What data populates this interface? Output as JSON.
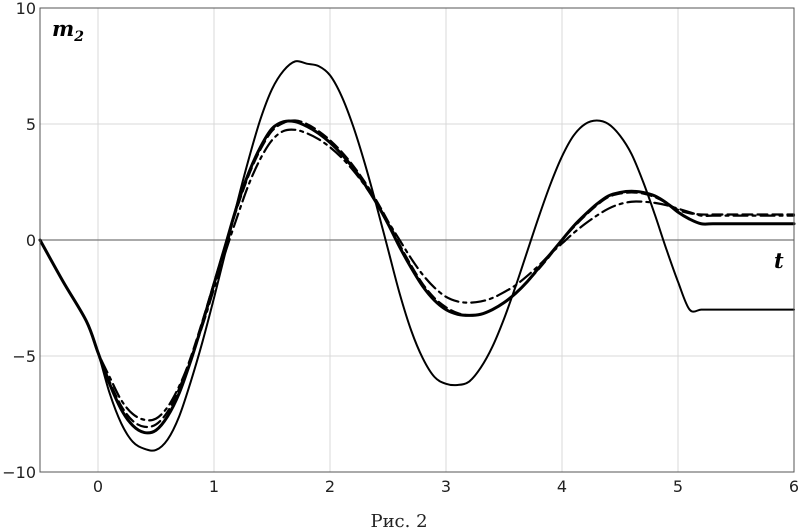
{
  "chart_data": {
    "type": "line",
    "title": "",
    "caption": "Рис. 2",
    "xlabel": "t",
    "ylabel": "m",
    "ylabel_subscript": "2",
    "xlim": [
      -0.5,
      6
    ],
    "ylim": [
      -10,
      10
    ],
    "xticks": [
      0,
      1,
      2,
      3,
      4,
      5,
      6
    ],
    "xtick_labels": [
      "0",
      "1",
      "2",
      "3",
      "4",
      "5",
      "6"
    ],
    "yticks": [
      -10,
      -5,
      0,
      5,
      10
    ],
    "ytick_labels": [
      "−10",
      "−5",
      "0",
      "5",
      "10"
    ],
    "grid": true,
    "legend": "none",
    "series": [
      {
        "style": "solid-thin",
        "x": [
          -0.5,
          -0.3,
          -0.1,
          0,
          0.1,
          0.2,
          0.3,
          0.4,
          0.5,
          0.6,
          0.7,
          0.8,
          0.9,
          1.0,
          1.1,
          1.2,
          1.3,
          1.4,
          1.5,
          1.6,
          1.7,
          1.8,
          1.9,
          2.0,
          2.1,
          2.2,
          2.3,
          2.4,
          2.5,
          2.6,
          2.7,
          2.8,
          2.9,
          3.0,
          3.1,
          3.2,
          3.3,
          3.4,
          3.5,
          3.6,
          3.7,
          3.8,
          3.9,
          4.0,
          4.1,
          4.2,
          4.3,
          4.4,
          4.5,
          4.6,
          4.7,
          4.8,
          4.9,
          5.0,
          5.1,
          5.2,
          5.3,
          5.4,
          5.5,
          5.6,
          5.7,
          5.8,
          5.9,
          6.0
        ],
        "y": [
          0,
          -1.8,
          -3.5,
          -4.85,
          -6.6,
          -7.9,
          -8.7,
          -9.0,
          -9.05,
          -8.6,
          -7.6,
          -6.1,
          -4.4,
          -2.5,
          -0.5,
          1.6,
          3.5,
          5.2,
          6.5,
          7.3,
          7.7,
          7.6,
          7.5,
          7.1,
          6.2,
          4.9,
          3.3,
          1.5,
          -0.4,
          -2.3,
          -3.9,
          -5.1,
          -5.9,
          -6.2,
          -6.25,
          -6.1,
          -5.5,
          -4.6,
          -3.4,
          -2.0,
          -0.5,
          1.0,
          2.4,
          3.6,
          4.5,
          5.0,
          5.15,
          5.0,
          4.5,
          3.7,
          2.5,
          1.1,
          -0.4,
          -1.8,
          -3.0,
          -3.0,
          -3.0,
          -3.0,
          -3.0,
          -3.0,
          -3.0,
          -3.0,
          -3.0,
          -3.0
        ]
      },
      {
        "style": "solid-thick",
        "x": [
          -0.5,
          -0.3,
          -0.1,
          0,
          0.1,
          0.2,
          0.3,
          0.4,
          0.5,
          0.6,
          0.7,
          0.8,
          0.9,
          1.0,
          1.1,
          1.2,
          1.3,
          1.4,
          1.5,
          1.6,
          1.7,
          1.8,
          1.9,
          2.0,
          2.1,
          2.2,
          2.3,
          2.4,
          2.5,
          2.6,
          2.7,
          2.8,
          2.9,
          3.0,
          3.1,
          3.2,
          3.3,
          3.4,
          3.5,
          3.6,
          3.7,
          3.8,
          3.9,
          4.0,
          4.1,
          4.2,
          4.3,
          4.4,
          4.5,
          4.6,
          4.7,
          4.8,
          4.9,
          5.0,
          5.1,
          5.2,
          5.3,
          5.4,
          5.5,
          5.6,
          5.7,
          5.8,
          5.9,
          6.0
        ],
        "y": [
          0,
          -1.8,
          -3.5,
          -4.85,
          -6.2,
          -7.3,
          -8.0,
          -8.3,
          -8.2,
          -7.6,
          -6.6,
          -5.2,
          -3.6,
          -1.9,
          -0.2,
          1.5,
          2.9,
          4.0,
          4.8,
          5.1,
          5.1,
          4.9,
          4.6,
          4.2,
          3.7,
          3.1,
          2.4,
          1.6,
          0.7,
          -0.3,
          -1.2,
          -2.0,
          -2.6,
          -3.0,
          -3.2,
          -3.25,
          -3.2,
          -3.0,
          -2.7,
          -2.3,
          -1.8,
          -1.2,
          -0.6,
          0.0,
          0.6,
          1.1,
          1.55,
          1.9,
          2.05,
          2.1,
          2.05,
          1.9,
          1.6,
          1.2,
          0.9,
          0.7,
          0.7,
          0.7,
          0.7,
          0.7,
          0.7,
          0.7,
          0.7,
          0.7
        ]
      },
      {
        "style": "dashed",
        "x": [
          -0.5,
          -0.3,
          -0.1,
          0,
          0.1,
          0.2,
          0.3,
          0.4,
          0.5,
          0.6,
          0.7,
          0.8,
          0.9,
          1.0,
          1.1,
          1.2,
          1.3,
          1.4,
          1.5,
          1.6,
          1.7,
          1.8,
          1.9,
          2.0,
          2.1,
          2.2,
          2.3,
          2.4,
          2.5,
          2.6,
          2.7,
          2.8,
          2.9,
          3.0,
          3.1,
          3.2,
          3.3,
          3.4,
          3.5,
          3.6,
          3.7,
          3.8,
          3.9,
          4.0,
          4.1,
          4.2,
          4.3,
          4.4,
          4.5,
          4.6,
          4.7,
          4.8,
          4.9,
          5.0,
          5.1,
          5.2,
          5.3,
          5.4,
          5.5,
          5.6,
          5.7,
          5.8,
          5.9,
          6.0
        ],
        "y": [
          0,
          -1.8,
          -3.5,
          -4.85,
          -6.1,
          -7.15,
          -7.8,
          -8.05,
          -7.95,
          -7.4,
          -6.4,
          -5.05,
          -3.5,
          -1.85,
          -0.2,
          1.4,
          2.8,
          3.9,
          4.7,
          5.05,
          5.15,
          5.0,
          4.7,
          4.3,
          3.8,
          3.2,
          2.5,
          1.7,
          0.8,
          -0.2,
          -1.1,
          -1.9,
          -2.5,
          -2.9,
          -3.15,
          -3.25,
          -3.2,
          -3.0,
          -2.7,
          -2.3,
          -1.8,
          -1.25,
          -0.65,
          0.0,
          0.55,
          1.05,
          1.5,
          1.85,
          2.0,
          2.05,
          2.0,
          1.85,
          1.6,
          1.3,
          1.15,
          1.1,
          1.1,
          1.1,
          1.1,
          1.1,
          1.1,
          1.1,
          1.1,
          1.1
        ]
      },
      {
        "style": "dash-dot",
        "x": [
          -0.5,
          -0.3,
          -0.1,
          0,
          0.1,
          0.2,
          0.3,
          0.4,
          0.5,
          0.6,
          0.7,
          0.8,
          0.9,
          1.0,
          1.1,
          1.2,
          1.3,
          1.4,
          1.5,
          1.6,
          1.7,
          1.8,
          1.9,
          2.0,
          2.1,
          2.2,
          2.3,
          2.4,
          2.5,
          2.6,
          2.7,
          2.8,
          2.9,
          3.0,
          3.1,
          3.2,
          3.3,
          3.4,
          3.5,
          3.6,
          3.7,
          3.8,
          3.9,
          4.0,
          4.1,
          4.2,
          4.3,
          4.4,
          4.5,
          4.6,
          4.7,
          4.8,
          4.9,
          5.0,
          5.1,
          5.2,
          5.3,
          5.4,
          5.5,
          5.6,
          5.7,
          5.8,
          5.9,
          6.0
        ],
        "y": [
          0,
          -1.8,
          -3.5,
          -4.85,
          -5.9,
          -6.9,
          -7.5,
          -7.75,
          -7.7,
          -7.2,
          -6.3,
          -5.1,
          -3.7,
          -2.1,
          -0.5,
          1.0,
          2.4,
          3.5,
          4.3,
          4.7,
          4.75,
          4.6,
          4.35,
          4.0,
          3.55,
          3.0,
          2.35,
          1.6,
          0.8,
          0.0,
          -0.8,
          -1.5,
          -2.05,
          -2.45,
          -2.65,
          -2.7,
          -2.65,
          -2.5,
          -2.25,
          -1.95,
          -1.55,
          -1.1,
          -0.6,
          -0.15,
          0.3,
          0.7,
          1.05,
          1.35,
          1.55,
          1.65,
          1.65,
          1.6,
          1.5,
          1.35,
          1.2,
          1.05,
          1.05,
          1.05,
          1.05,
          1.05,
          1.05,
          1.05,
          1.05,
          1.05
        ]
      }
    ]
  }
}
